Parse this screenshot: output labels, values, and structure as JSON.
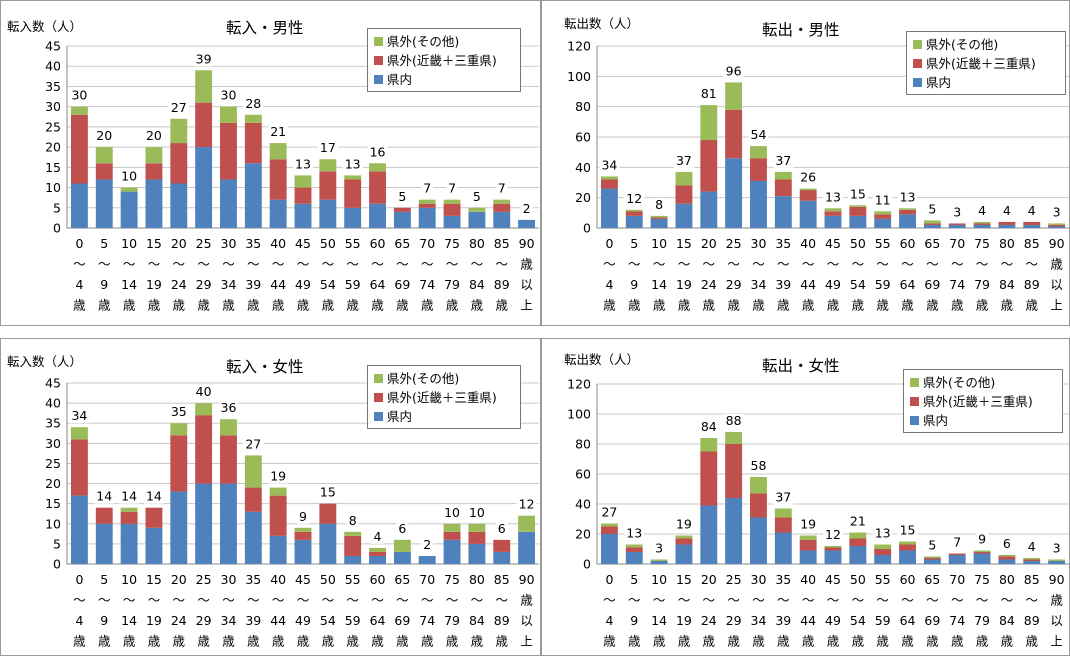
{
  "legend_labels": [
    "県外(その他)",
    "県外(近畿＋三重県)",
    "県内"
  ],
  "colors": {
    "other": "#9bbb59",
    "kinki": "#c0504d",
    "pref": "#4f81bd"
  },
  "x_ticks": [
    [
      "0",
      "～",
      "4",
      "歳"
    ],
    [
      "5",
      "～",
      "9",
      "歳"
    ],
    [
      "10",
      "～",
      "14",
      "歳"
    ],
    [
      "15",
      "～",
      "19",
      "歳"
    ],
    [
      "20",
      "～",
      "24",
      "歳"
    ],
    [
      "25",
      "～",
      "29",
      "歳"
    ],
    [
      "30",
      "～",
      "34",
      "歳"
    ],
    [
      "35",
      "～",
      "39",
      "歳"
    ],
    [
      "40",
      "～",
      "44",
      "歳"
    ],
    [
      "45",
      "～",
      "49",
      "歳"
    ],
    [
      "50",
      "～",
      "54",
      "歳"
    ],
    [
      "55",
      "～",
      "59",
      "歳"
    ],
    [
      "60",
      "～",
      "64",
      "歳"
    ],
    [
      "65",
      "～",
      "69",
      "歳"
    ],
    [
      "70",
      "～",
      "74",
      "歳"
    ],
    [
      "75",
      "～",
      "79",
      "歳"
    ],
    [
      "80",
      "～",
      "84",
      "歳"
    ],
    [
      "85",
      "～",
      "89",
      "歳"
    ],
    [
      "90",
      "歳",
      "以",
      "上"
    ]
  ],
  "chart_data": [
    {
      "type": "bar",
      "stacked": true,
      "title": "転入・男性",
      "ylabel": "転入数（人）",
      "ylim": [
        0,
        45
      ],
      "yticks": [
        0,
        5,
        10,
        15,
        20,
        25,
        30,
        35,
        40,
        45
      ],
      "categories": [
        "0～4歳",
        "5～9歳",
        "10～14歳",
        "15～19歳",
        "20～24歳",
        "25～29歳",
        "30～34歳",
        "35～39歳",
        "40～44歳",
        "45～49歳",
        "50～54歳",
        "55～59歳",
        "60～64歳",
        "65～69歳",
        "70～74歳",
        "75～79歳",
        "80～84歳",
        "85～89歳",
        "90歳以上"
      ],
      "series": [
        {
          "name": "県内",
          "values": [
            11,
            12,
            9,
            12,
            11,
            20,
            12,
            16,
            7,
            6,
            7,
            5,
            6,
            4,
            5,
            3,
            4,
            4,
            2
          ]
        },
        {
          "name": "県外(近畿＋三重県)",
          "values": [
            17,
            4,
            0,
            4,
            10,
            11,
            14,
            10,
            10,
            4,
            7,
            7,
            8,
            1,
            1,
            3,
            0,
            2,
            0
          ]
        },
        {
          "name": "県外(その他)",
          "values": [
            2,
            4,
            1,
            4,
            6,
            8,
            4,
            2,
            4,
            3,
            3,
            1,
            2,
            0,
            1,
            1,
            1,
            1,
            0
          ]
        }
      ],
      "totals": [
        30,
        20,
        10,
        20,
        27,
        39,
        30,
        28,
        21,
        13,
        17,
        13,
        16,
        5,
        7,
        7,
        5,
        7,
        2
      ],
      "grid": true,
      "legend_position": "top-right"
    },
    {
      "type": "bar",
      "stacked": true,
      "title": "転出・男性",
      "ylabel": "転出数（人）",
      "ylim": [
        0,
        120
      ],
      "yticks": [
        0,
        20,
        40,
        60,
        80,
        100,
        120
      ],
      "categories": [
        "0～4歳",
        "5～9歳",
        "10～14歳",
        "15～19歳",
        "20～24歳",
        "25～29歳",
        "30～34歳",
        "35～39歳",
        "40～44歳",
        "45～49歳",
        "50～54歳",
        "55～59歳",
        "60～64歳",
        "65～69歳",
        "70～74歳",
        "75～79歳",
        "80～84歳",
        "85～89歳",
        "90歳以上"
      ],
      "series": [
        {
          "name": "県内",
          "values": [
            26,
            8,
            6,
            16,
            24,
            46,
            31,
            21,
            18,
            8,
            8,
            6,
            9,
            2,
            2,
            2,
            2,
            2,
            1
          ]
        },
        {
          "name": "県外(近畿＋三重県)",
          "values": [
            6,
            3,
            1,
            12,
            34,
            32,
            15,
            11,
            7,
            3,
            6,
            3,
            3,
            1,
            1,
            1,
            2,
            2,
            1
          ]
        },
        {
          "name": "県外(その他)",
          "values": [
            2,
            1,
            1,
            9,
            23,
            18,
            8,
            5,
            1,
            2,
            1,
            2,
            1,
            2,
            0,
            1,
            0,
            0,
            1
          ]
        }
      ],
      "totals": [
        34,
        12,
        8,
        37,
        81,
        96,
        54,
        37,
        26,
        13,
        15,
        11,
        13,
        5,
        3,
        4,
        4,
        4,
        3
      ],
      "grid": true,
      "legend_position": "top-right"
    },
    {
      "type": "bar",
      "stacked": true,
      "title": "転入・女性",
      "ylabel": "転入数（人）",
      "ylim": [
        0,
        45
      ],
      "yticks": [
        0,
        5,
        10,
        15,
        20,
        25,
        30,
        35,
        40,
        45
      ],
      "categories": [
        "0～4歳",
        "5～9歳",
        "10～14歳",
        "15～19歳",
        "20～24歳",
        "25～29歳",
        "30～34歳",
        "35～39歳",
        "40～44歳",
        "45～49歳",
        "50～54歳",
        "55～59歳",
        "60～64歳",
        "65～69歳",
        "70～74歳",
        "75～79歳",
        "80～84歳",
        "85～89歳",
        "90歳以上"
      ],
      "series": [
        {
          "name": "県内",
          "values": [
            17,
            10,
            10,
            9,
            18,
            20,
            20,
            13,
            7,
            6,
            10,
            2,
            2,
            3,
            2,
            6,
            5,
            3,
            8
          ]
        },
        {
          "name": "県外(近畿＋三重県)",
          "values": [
            14,
            4,
            3,
            5,
            14,
            17,
            12,
            6,
            10,
            2,
            5,
            5,
            1,
            0,
            0,
            2,
            3,
            3,
            0
          ]
        },
        {
          "name": "県外(その他)",
          "values": [
            3,
            0,
            1,
            0,
            3,
            3,
            4,
            8,
            2,
            1,
            0,
            1,
            1,
            3,
            0,
            2,
            2,
            0,
            4
          ]
        }
      ],
      "totals": [
        34,
        14,
        14,
        14,
        35,
        40,
        36,
        27,
        19,
        9,
        15,
        8,
        4,
        6,
        2,
        10,
        10,
        6,
        12
      ],
      "grid": true,
      "legend_position": "top-right"
    },
    {
      "type": "bar",
      "stacked": true,
      "title": "転出・女性",
      "ylabel": "転出数（人）",
      "ylim": [
        0,
        120
      ],
      "yticks": [
        0,
        20,
        40,
        60,
        80,
        100,
        120
      ],
      "categories": [
        "0～4歳",
        "5～9歳",
        "10～14歳",
        "15～19歳",
        "20～24歳",
        "25～29歳",
        "30～34歳",
        "35～39歳",
        "40～44歳",
        "45～49歳",
        "50～54歳",
        "55～59歳",
        "60～64歳",
        "65～69歳",
        "70～74歳",
        "75～79歳",
        "80～84歳",
        "85～89歳",
        "90歳以上"
      ],
      "series": [
        {
          "name": "県内",
          "values": [
            20,
            8,
            2,
            13,
            39,
            44,
            31,
            21,
            9,
            9,
            12,
            6,
            9,
            3,
            6,
            7,
            3,
            2,
            2
          ]
        },
        {
          "name": "県外(近畿＋三重県)",
          "values": [
            5,
            3,
            0,
            4,
            36,
            36,
            16,
            10,
            7,
            2,
            5,
            4,
            4,
            1,
            1,
            1,
            2,
            1,
            0
          ]
        },
        {
          "name": "県外(その他)",
          "values": [
            2,
            2,
            1,
            2,
            9,
            8,
            11,
            6,
            3,
            1,
            4,
            3,
            2,
            1,
            0,
            1,
            1,
            1,
            1
          ]
        }
      ],
      "totals": [
        27,
        13,
        3,
        19,
        84,
        88,
        58,
        37,
        19,
        12,
        21,
        13,
        15,
        5,
        7,
        9,
        6,
        4,
        3
      ],
      "grid": true,
      "legend_position": "top-right"
    }
  ]
}
